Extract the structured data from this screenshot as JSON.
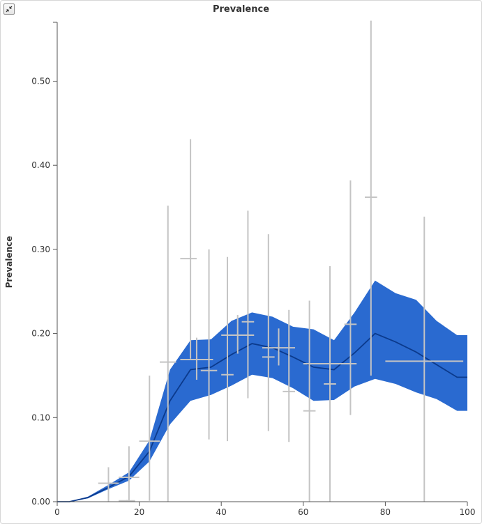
{
  "chart_data": {
    "type": "line",
    "title": "Prevalence",
    "ylabel": "Prevalence",
    "xlabel": "",
    "xlim": [
      0,
      100
    ],
    "ylim": [
      0,
      0.57
    ],
    "x_ticks": [
      0,
      20,
      40,
      60,
      80,
      100
    ],
    "y_ticks": [
      0.0,
      0.1,
      0.2,
      0.3,
      0.4,
      0.5
    ],
    "y_tick_labels": [
      "0.00",
      "0.10",
      "0.20",
      "0.30",
      "0.40",
      "0.50"
    ],
    "colors": {
      "band": "#2a6ad0",
      "line": "#0b3a8c",
      "errorbar": "#c4c4c4",
      "axis": "#555555"
    },
    "series": [
      {
        "kind": "model_median",
        "x": [
          0,
          3,
          7.5,
          12.5,
          17.5,
          22.5,
          27.5,
          32.5,
          37.5,
          42.5,
          47.5,
          52.5,
          57.5,
          62.5,
          67.5,
          72.5,
          77.5,
          82.5,
          87.5,
          92.5,
          97.5,
          100
        ],
        "y": [
          0,
          0,
          0.005,
          0.017,
          0.03,
          0.06,
          0.12,
          0.157,
          0.16,
          0.175,
          0.188,
          0.183,
          0.172,
          0.16,
          0.157,
          0.177,
          0.2,
          0.19,
          0.178,
          0.163,
          0.148,
          0.148
        ],
        "lower": [
          0,
          0,
          0.004,
          0.015,
          0.025,
          0.048,
          0.092,
          0.12,
          0.127,
          0.138,
          0.151,
          0.147,
          0.135,
          0.12,
          0.121,
          0.137,
          0.146,
          0.14,
          0.13,
          0.122,
          0.108,
          0.108
        ],
        "upper": [
          0,
          0,
          0.006,
          0.02,
          0.035,
          0.073,
          0.157,
          0.192,
          0.193,
          0.215,
          0.225,
          0.22,
          0.208,
          0.205,
          0.192,
          0.225,
          0.263,
          0.248,
          0.24,
          0.215,
          0.198,
          0.198
        ]
      },
      {
        "kind": "observations",
        "points": [
          {
            "x": 12.5,
            "y": 0.022,
            "xmin": 10,
            "xmax": 15,
            "ymin": 0.0,
            "ymax": 0.041
          },
          {
            "x": 17,
            "y": 0.001,
            "xmin": 15,
            "xmax": 19,
            "ymin": 0.0,
            "ymax": 0.002
          },
          {
            "x": 17.5,
            "y": 0.029,
            "xmin": 15,
            "xmax": 20,
            "ymin": 0.0,
            "ymax": 0.066
          },
          {
            "x": 22.5,
            "y": 0.072,
            "xmin": 20,
            "xmax": 25,
            "ymin": 0.001,
            "ymax": 0.15
          },
          {
            "x": 27,
            "y": 0.166,
            "xmin": 25,
            "xmax": 29,
            "ymin": 0.0,
            "ymax": 0.352
          },
          {
            "x": 32.5,
            "y": 0.289,
            "xmin": 30,
            "xmax": 34,
            "ymin": 0.17,
            "ymax": 0.431
          },
          {
            "x": 34,
            "y": 0.169,
            "xmin": 30,
            "xmax": 38,
            "ymin": 0.145,
            "ymax": 0.195
          },
          {
            "x": 37,
            "y": 0.156,
            "xmin": 35,
            "xmax": 39,
            "ymin": 0.074,
            "ymax": 0.3
          },
          {
            "x": 41.5,
            "y": 0.151,
            "xmin": 40,
            "xmax": 43,
            "ymin": 0.072,
            "ymax": 0.291
          },
          {
            "x": 44,
            "y": 0.198,
            "xmin": 40,
            "xmax": 48,
            "ymin": 0.176,
            "ymax": 0.222
          },
          {
            "x": 46.5,
            "y": 0.214,
            "xmin": 45,
            "xmax": 48,
            "ymin": 0.123,
            "ymax": 0.346
          },
          {
            "x": 51.5,
            "y": 0.172,
            "xmin": 50,
            "xmax": 53,
            "ymin": 0.084,
            "ymax": 0.318
          },
          {
            "x": 54,
            "y": 0.183,
            "xmin": 50,
            "xmax": 58,
            "ymin": 0.162,
            "ymax": 0.206
          },
          {
            "x": 56.5,
            "y": 0.131,
            "xmin": 55,
            "xmax": 58,
            "ymin": 0.071,
            "ymax": 0.228
          },
          {
            "x": 61.5,
            "y": 0.108,
            "xmin": 60,
            "xmax": 63,
            "ymin": 0.0,
            "ymax": 0.239
          },
          {
            "x": 66.5,
            "y": 0.14,
            "xmin": 65,
            "xmax": 68,
            "ymin": 0.0,
            "ymax": 0.28
          },
          {
            "x": 67,
            "y": 0.164,
            "xmin": 60,
            "xmax": 73,
            "ymin": 0.164,
            "ymax": 0.164
          },
          {
            "x": 71.5,
            "y": 0.211,
            "xmin": 70,
            "xmax": 73,
            "ymin": 0.103,
            "ymax": 0.382
          },
          {
            "x": 76.5,
            "y": 0.362,
            "xmin": 75,
            "xmax": 78,
            "ymin": 0.15,
            "ymax": 0.572
          },
          {
            "x": 89.5,
            "y": 0.167,
            "xmin": 80,
            "xmax": 99,
            "ymin": 0.0,
            "ymax": 0.339
          }
        ]
      }
    ],
    "grid": false,
    "legend": "none"
  },
  "ui": {
    "expand_icon": "collapse-arrows-icon"
  }
}
